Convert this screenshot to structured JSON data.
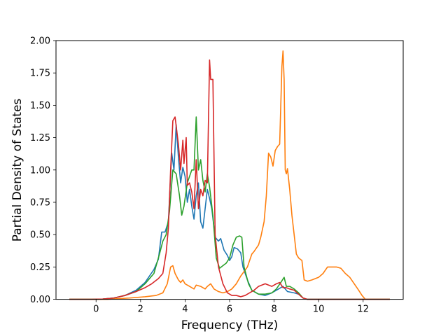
{
  "chart_data": {
    "type": "line",
    "title": "",
    "xlabel": "Frequency (THz)",
    "ylabel": "Partial Density of States",
    "xlim": [
      -1.8,
      13.8
    ],
    "ylim": [
      0.0,
      2.0
    ],
    "xticks": [
      0,
      2,
      4,
      6,
      8,
      10,
      12
    ],
    "yticks": [
      0.0,
      0.25,
      0.5,
      0.75,
      1.0,
      1.25,
      1.5,
      1.75,
      2.0
    ],
    "xtick_labels": [
      "0",
      "2",
      "4",
      "6",
      "8",
      "10",
      "12"
    ],
    "ytick_labels": [
      "0.00",
      "0.25",
      "0.50",
      "0.75",
      "1.00",
      "1.25",
      "1.50",
      "1.75",
      "2.00"
    ],
    "grid": false,
    "series": [
      {
        "color": "#1f77b4",
        "points": [
          [
            -1.2,
            0
          ],
          [
            -0.2,
            0
          ],
          [
            0.3,
            0.002
          ],
          [
            0.8,
            0.01
          ],
          [
            1.3,
            0.03
          ],
          [
            1.8,
            0.07
          ],
          [
            2.2,
            0.13
          ],
          [
            2.6,
            0.23
          ],
          [
            2.8,
            0.31
          ],
          [
            2.95,
            0.52
          ],
          [
            3.1,
            0.52
          ],
          [
            3.25,
            0.6
          ],
          [
            3.4,
            1.13
          ],
          [
            3.5,
            1.0
          ],
          [
            3.6,
            1.35
          ],
          [
            3.7,
            1.1
          ],
          [
            3.8,
            0.9
          ],
          [
            3.9,
            1.02
          ],
          [
            4.0,
            0.95
          ],
          [
            4.1,
            0.75
          ],
          [
            4.2,
            0.85
          ],
          [
            4.3,
            0.72
          ],
          [
            4.4,
            0.62
          ],
          [
            4.5,
            0.8
          ],
          [
            4.6,
            0.9
          ],
          [
            4.7,
            0.6
          ],
          [
            4.8,
            0.55
          ],
          [
            4.9,
            0.7
          ],
          [
            5.0,
            0.85
          ],
          [
            5.1,
            0.78
          ],
          [
            5.2,
            0.7
          ],
          [
            5.35,
            0.48
          ],
          [
            5.5,
            0.45
          ],
          [
            5.6,
            0.47
          ],
          [
            5.75,
            0.38
          ],
          [
            5.9,
            0.34
          ],
          [
            6.0,
            0.3
          ],
          [
            6.1,
            0.33
          ],
          [
            6.2,
            0.4
          ],
          [
            6.35,
            0.39
          ],
          [
            6.5,
            0.36
          ],
          [
            6.6,
            0.25
          ],
          [
            6.8,
            0.15
          ],
          [
            7.0,
            0.07
          ],
          [
            7.3,
            0.04
          ],
          [
            7.6,
            0.03
          ],
          [
            7.9,
            0.05
          ],
          [
            8.2,
            0.08
          ],
          [
            8.4,
            0.1
          ],
          [
            8.6,
            0.06
          ],
          [
            8.9,
            0.05
          ],
          [
            9.1,
            0.04
          ],
          [
            9.3,
            0.01
          ],
          [
            9.5,
            0
          ],
          [
            13.2,
            0
          ]
        ]
      },
      {
        "color": "#ff7f0e",
        "points": [
          [
            -1.2,
            0
          ],
          [
            0.5,
            0
          ],
          [
            1.5,
            0.01
          ],
          [
            2.2,
            0.02
          ],
          [
            2.7,
            0.03
          ],
          [
            3.0,
            0.05
          ],
          [
            3.2,
            0.12
          ],
          [
            3.35,
            0.25
          ],
          [
            3.45,
            0.26
          ],
          [
            3.55,
            0.2
          ],
          [
            3.7,
            0.15
          ],
          [
            3.8,
            0.13
          ],
          [
            3.9,
            0.15
          ],
          [
            4.0,
            0.12
          ],
          [
            4.2,
            0.1
          ],
          [
            4.4,
            0.08
          ],
          [
            4.5,
            0.11
          ],
          [
            4.7,
            0.1
          ],
          [
            4.9,
            0.08
          ],
          [
            5.0,
            0.1
          ],
          [
            5.15,
            0.12
          ],
          [
            5.3,
            0.08
          ],
          [
            5.5,
            0.06
          ],
          [
            5.7,
            0.05
          ],
          [
            5.9,
            0.06
          ],
          [
            6.1,
            0.08
          ],
          [
            6.3,
            0.12
          ],
          [
            6.5,
            0.18
          ],
          [
            6.8,
            0.25
          ],
          [
            7.0,
            0.35
          ],
          [
            7.1,
            0.37
          ],
          [
            7.3,
            0.42
          ],
          [
            7.4,
            0.48
          ],
          [
            7.55,
            0.6
          ],
          [
            7.65,
            0.8
          ],
          [
            7.75,
            1.13
          ],
          [
            7.85,
            1.1
          ],
          [
            7.95,
            1.03
          ],
          [
            8.05,
            1.15
          ],
          [
            8.15,
            1.18
          ],
          [
            8.25,
            1.2
          ],
          [
            8.3,
            1.5
          ],
          [
            8.35,
            1.8
          ],
          [
            8.4,
            1.92
          ],
          [
            8.45,
            1.7
          ],
          [
            8.5,
            1.0
          ],
          [
            8.55,
            0.97
          ],
          [
            8.6,
            1.01
          ],
          [
            8.7,
            0.85
          ],
          [
            8.8,
            0.65
          ],
          [
            8.9,
            0.5
          ],
          [
            9.0,
            0.35
          ],
          [
            9.1,
            0.32
          ],
          [
            9.25,
            0.3
          ],
          [
            9.35,
            0.15
          ],
          [
            9.5,
            0.14
          ],
          [
            9.7,
            0.15
          ],
          [
            10.0,
            0.17
          ],
          [
            10.2,
            0.2
          ],
          [
            10.4,
            0.25
          ],
          [
            10.6,
            0.25
          ],
          [
            10.8,
            0.25
          ],
          [
            11.0,
            0.24
          ],
          [
            11.2,
            0.2
          ],
          [
            11.4,
            0.17
          ],
          [
            11.6,
            0.12
          ],
          [
            11.8,
            0.07
          ],
          [
            11.95,
            0.03
          ],
          [
            12.1,
            0
          ],
          [
            13.2,
            0
          ]
        ]
      },
      {
        "color": "#2ca02c",
        "points": [
          [
            -1.2,
            0
          ],
          [
            -0.2,
            0
          ],
          [
            0.3,
            0.002
          ],
          [
            0.8,
            0.01
          ],
          [
            1.3,
            0.03
          ],
          [
            1.8,
            0.06
          ],
          [
            2.2,
            0.12
          ],
          [
            2.6,
            0.2
          ],
          [
            2.85,
            0.35
          ],
          [
            3.0,
            0.45
          ],
          [
            3.15,
            0.5
          ],
          [
            3.3,
            0.68
          ],
          [
            3.45,
            1.0
          ],
          [
            3.6,
            0.97
          ],
          [
            3.75,
            0.8
          ],
          [
            3.85,
            0.65
          ],
          [
            3.95,
            0.72
          ],
          [
            4.1,
            0.9
          ],
          [
            4.2,
            0.95
          ],
          [
            4.3,
            1.0
          ],
          [
            4.4,
            1.0
          ],
          [
            4.5,
            1.41
          ],
          [
            4.6,
            1.0
          ],
          [
            4.7,
            1.08
          ],
          [
            4.8,
            0.92
          ],
          [
            4.9,
            0.83
          ],
          [
            5.0,
            0.97
          ],
          [
            5.1,
            0.87
          ],
          [
            5.25,
            0.65
          ],
          [
            5.4,
            0.32
          ],
          [
            5.55,
            0.24
          ],
          [
            5.7,
            0.26
          ],
          [
            5.85,
            0.28
          ],
          [
            6.0,
            0.32
          ],
          [
            6.15,
            0.42
          ],
          [
            6.3,
            0.48
          ],
          [
            6.45,
            0.49
          ],
          [
            6.55,
            0.48
          ],
          [
            6.65,
            0.25
          ],
          [
            6.85,
            0.12
          ],
          [
            7.0,
            0.07
          ],
          [
            7.3,
            0.04
          ],
          [
            7.6,
            0.04
          ],
          [
            7.9,
            0.05
          ],
          [
            8.1,
            0.08
          ],
          [
            8.3,
            0.13
          ],
          [
            8.45,
            0.17
          ],
          [
            8.55,
            0.1
          ],
          [
            8.7,
            0.1
          ],
          [
            8.9,
            0.08
          ],
          [
            9.1,
            0.05
          ],
          [
            9.3,
            0.01
          ],
          [
            9.5,
            0
          ],
          [
            13.2,
            0
          ]
        ]
      },
      {
        "color": "#d62728",
        "points": [
          [
            -1.2,
            0
          ],
          [
            -0.2,
            0
          ],
          [
            0.3,
            0.002
          ],
          [
            0.8,
            0.01
          ],
          [
            1.3,
            0.03
          ],
          [
            1.8,
            0.06
          ],
          [
            2.2,
            0.09
          ],
          [
            2.5,
            0.12
          ],
          [
            2.8,
            0.16
          ],
          [
            3.0,
            0.2
          ],
          [
            3.15,
            0.36
          ],
          [
            3.25,
            0.55
          ],
          [
            3.35,
            1.0
          ],
          [
            3.45,
            1.38
          ],
          [
            3.55,
            1.41
          ],
          [
            3.7,
            1.2
          ],
          [
            3.8,
            1.0
          ],
          [
            3.9,
            1.23
          ],
          [
            3.95,
            1.05
          ],
          [
            4.05,
            1.25
          ],
          [
            4.1,
            0.88
          ],
          [
            4.2,
            0.9
          ],
          [
            4.3,
            0.83
          ],
          [
            4.4,
            0.7
          ],
          [
            4.5,
            1.08
          ],
          [
            4.6,
            0.7
          ],
          [
            4.7,
            0.85
          ],
          [
            4.8,
            0.8
          ],
          [
            4.9,
            0.92
          ],
          [
            5.0,
            0.9
          ],
          [
            5.1,
            1.85
          ],
          [
            5.15,
            1.7
          ],
          [
            5.25,
            1.7
          ],
          [
            5.35,
            0.5
          ],
          [
            5.5,
            0.25
          ],
          [
            5.7,
            0.12
          ],
          [
            5.9,
            0.05
          ],
          [
            6.1,
            0.03
          ],
          [
            6.3,
            0.03
          ],
          [
            6.5,
            0.02
          ],
          [
            6.7,
            0.03
          ],
          [
            6.9,
            0.05
          ],
          [
            7.1,
            0.07
          ],
          [
            7.3,
            0.1
          ],
          [
            7.45,
            0.11
          ],
          [
            7.6,
            0.12
          ],
          [
            7.75,
            0.11
          ],
          [
            7.9,
            0.1
          ],
          [
            8.1,
            0.12
          ],
          [
            8.25,
            0.13
          ],
          [
            8.4,
            0.09
          ],
          [
            8.55,
            0.09
          ],
          [
            8.7,
            0.08
          ],
          [
            8.9,
            0.07
          ],
          [
            9.1,
            0.04
          ],
          [
            9.3,
            0.01
          ],
          [
            9.5,
            0
          ],
          [
            13.2,
            0
          ]
        ]
      }
    ]
  }
}
